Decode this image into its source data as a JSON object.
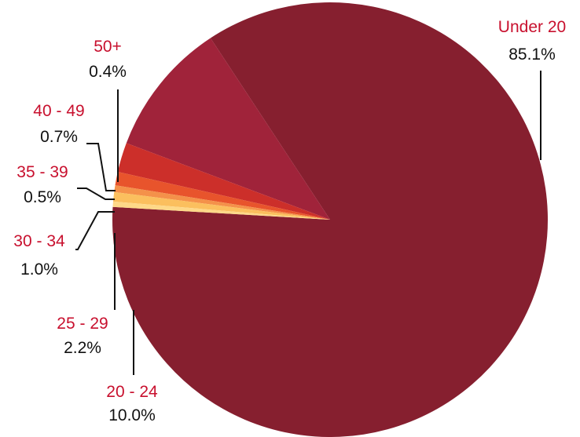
{
  "chart_data": {
    "type": "pie",
    "title": "",
    "label_color": "#c8102e",
    "value_color": "#111111",
    "slices": [
      {
        "label": "Under 20",
        "value": 85.1,
        "display": "85.1%",
        "color": "#861f2f"
      },
      {
        "label": "20 - 24",
        "value": 10.0,
        "display": "10.0%",
        "color": "#a0233a"
      },
      {
        "label": "25 - 29",
        "value": 2.2,
        "display": "2.2%",
        "color": "#cc2f2a"
      },
      {
        "label": "30 - 34",
        "value": 1.0,
        "display": "1.0%",
        "color": "#e8542c"
      },
      {
        "label": "35 - 39",
        "value": 0.5,
        "display": "0.5%",
        "color": "#f4914a"
      },
      {
        "label": "40 - 49",
        "value": 0.7,
        "display": "0.7%",
        "color": "#fbbf5e"
      },
      {
        "label": "50+",
        "value": 0.4,
        "display": "0.4%",
        "color": "#fed888"
      }
    ]
  }
}
